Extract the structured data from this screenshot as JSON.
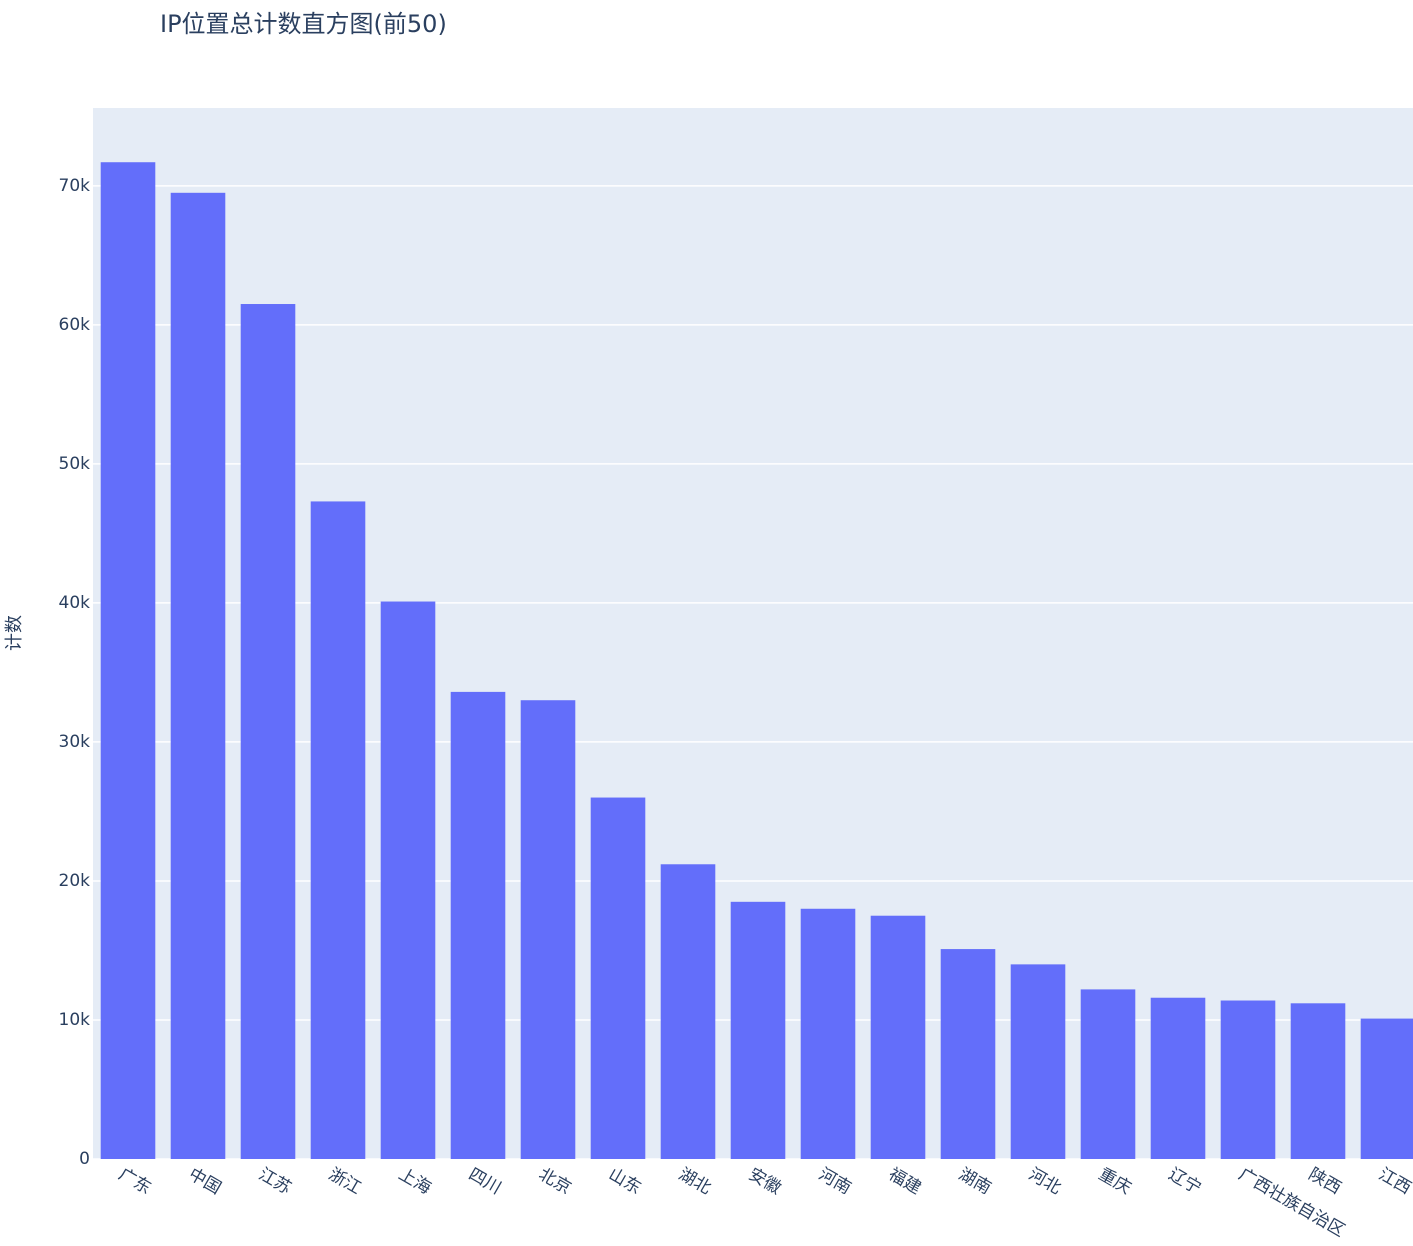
{
  "chart_data": {
    "type": "bar",
    "title": "IP位置总计数直方图(前50)",
    "y_label": "计数",
    "categories": [
      "广东",
      "中国",
      "江苏",
      "浙江",
      "上海",
      "四川",
      "北京",
      "山东",
      "湖北",
      "安徽",
      "河南",
      "福建",
      "湖南",
      "河北",
      "重庆",
      "辽宁",
      "广西壮族自治区",
      "陕西",
      "江西"
    ],
    "values": [
      71700,
      69500,
      61500,
      47300,
      40100,
      33600,
      33000,
      26000,
      21200,
      18500,
      18000,
      17500,
      15100,
      14000,
      12200,
      11600,
      11400,
      11200,
      10100
    ],
    "color": "#636efa",
    "background": "#e5ecf6",
    "grid": true,
    "ylim": [
      0,
      75600
    ],
    "yticks": [
      0,
      {
        "value": 10000,
        "label": "10k"
      },
      {
        "value": 20000,
        "label": "20k"
      },
      {
        "value": 30000,
        "label": "30k"
      },
      {
        "value": 40000,
        "label": "40k"
      },
      {
        "value": 50000,
        "label": "50k"
      },
      {
        "value": 60000,
        "label": "60k"
      },
      {
        "value": 70000,
        "label": "70k"
      }
    ]
  }
}
